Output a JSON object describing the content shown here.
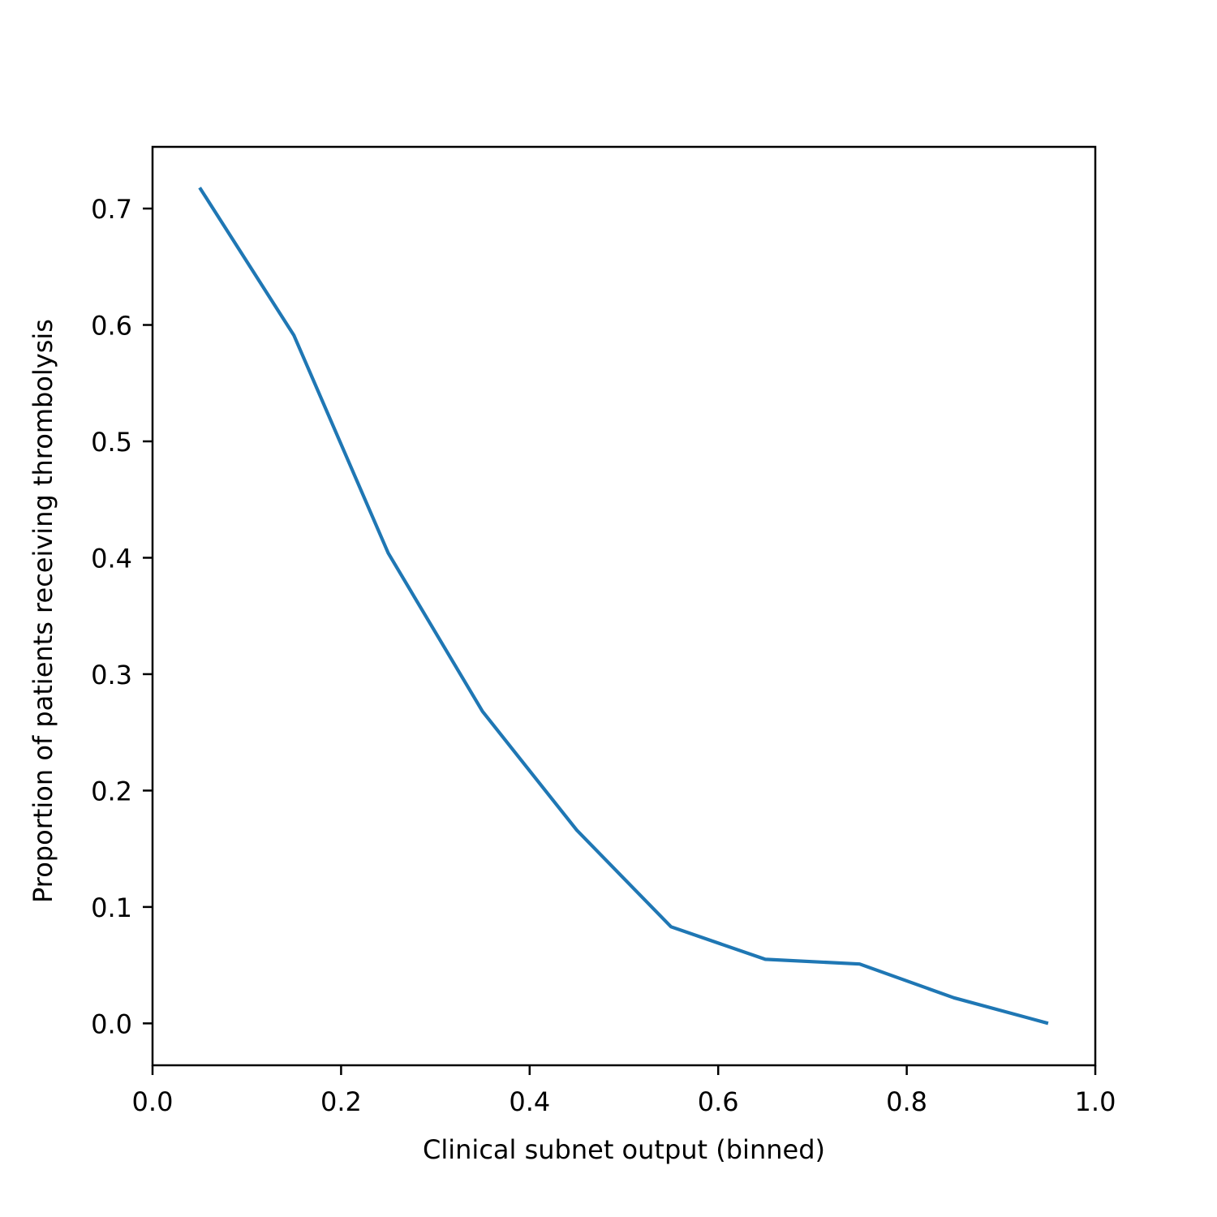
{
  "chart_data": {
    "type": "line",
    "title": "",
    "xlabel": "Clinical subnet output (binned)",
    "ylabel": "Proportion of patients receiving thrombolysis",
    "xlim": [
      0.0,
      1.0
    ],
    "ylim": [
      -0.036,
      0.753
    ],
    "x_ticks": [
      "0.0",
      "0.2",
      "0.4",
      "0.6",
      "0.8",
      "1.0"
    ],
    "y_ticks": [
      "0.0",
      "0.1",
      "0.2",
      "0.3",
      "0.4",
      "0.5",
      "0.6",
      "0.7"
    ],
    "grid": false,
    "legend": "none",
    "series": [
      {
        "color": "#1f77b4",
        "x": [
          0.05,
          0.15,
          0.25,
          0.35,
          0.45,
          0.55,
          0.65,
          0.75,
          0.85,
          0.95
        ],
        "y": [
          0.718,
          0.591,
          0.404,
          0.268,
          0.166,
          0.083,
          0.055,
          0.051,
          0.022,
          0.0
        ]
      }
    ]
  }
}
